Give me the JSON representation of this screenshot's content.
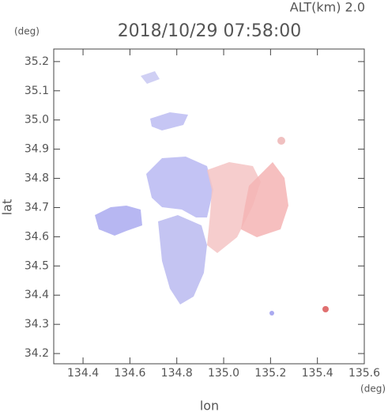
{
  "chart_data": {
    "type": "map",
    "title": "2018/10/29 07:58:00",
    "altitude_label": "ALT(km) 2.0",
    "x_label": "lon",
    "y_label": "lat",
    "x_unit": "(deg)",
    "y_unit": "(deg)",
    "xlim": [
      134.275,
      135.6
    ],
    "ylim": [
      34.165,
      35.243
    ],
    "xticks": [
      134.4,
      134.6,
      134.8,
      {
        "value": 135.0,
        "label": "135.0"
      },
      135.2,
      135.4,
      135.6
    ],
    "yticks": [
      34.2,
      34.3,
      34.4,
      34.5,
      34.6,
      34.7,
      34.8,
      34.9,
      {
        "value": 35.0,
        "label": "35.0"
      },
      35.1,
      35.2
    ]
  }
}
